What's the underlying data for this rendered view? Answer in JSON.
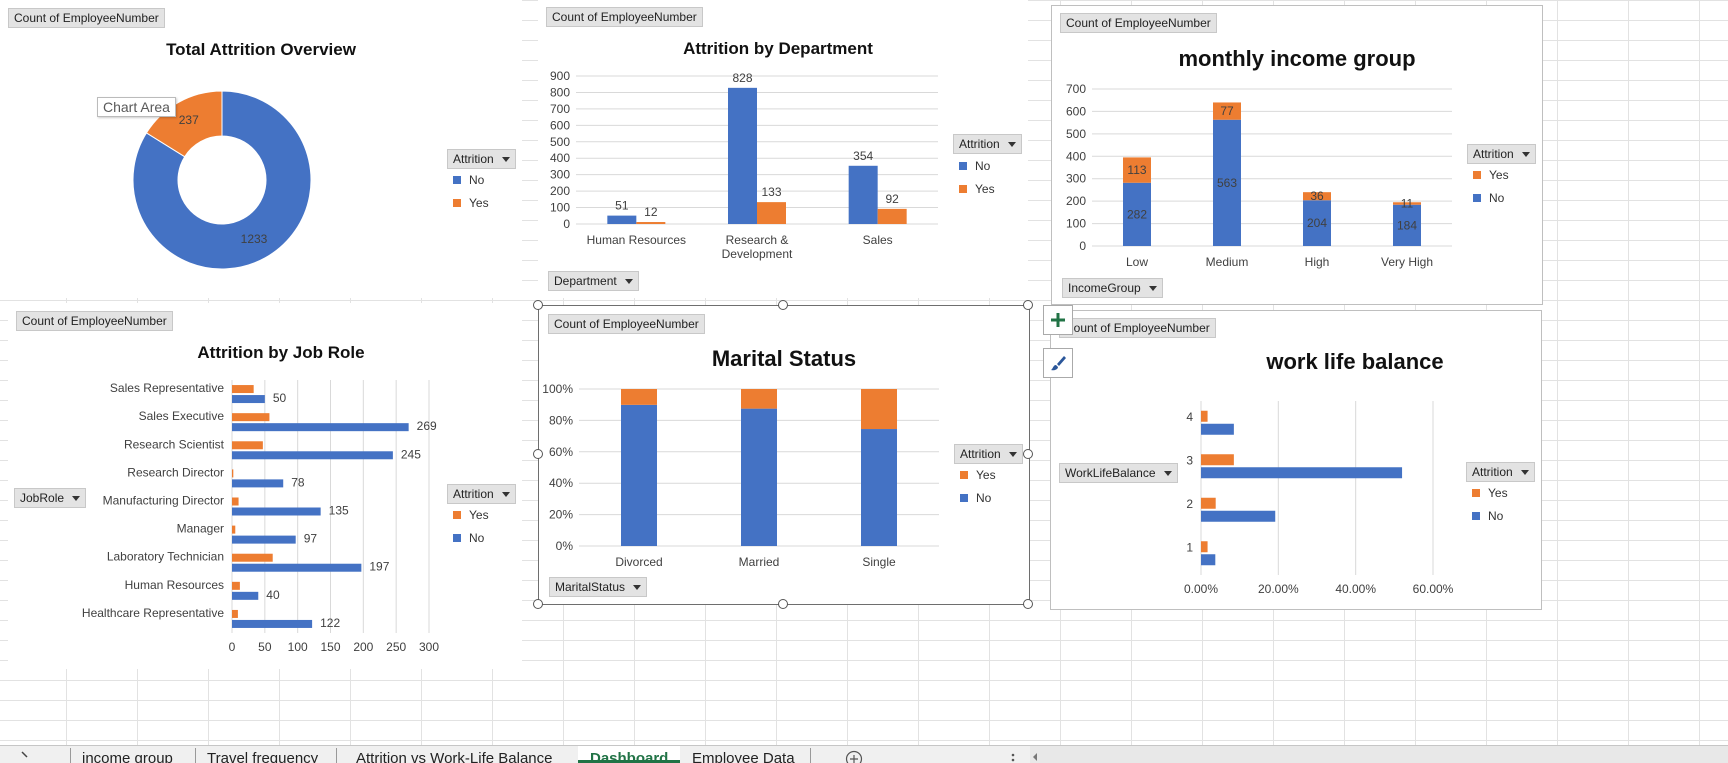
{
  "colors": {
    "blue": "#4472C4",
    "orange": "#ED7D31",
    "grid": "#d9d9d9",
    "excel_green": "#217346"
  },
  "tooltip": "Chart Area",
  "charts": {
    "overview": {
      "field_button": "Count of EmployeeNumber",
      "title": "Total Attrition Overview",
      "legend_button": "Attrition",
      "legend": [
        "No",
        "Yes"
      ]
    },
    "department": {
      "field_button": "Count of EmployeeNumber",
      "title": "Attrition by Department",
      "axis_button": "Department",
      "legend_button": "Attrition",
      "legend": [
        "No",
        "Yes"
      ]
    },
    "income": {
      "field_button": "Count of EmployeeNumber",
      "title": "monthly income group",
      "axis_button": "IncomeGroup",
      "legend_button": "Attrition",
      "legend": [
        "Yes",
        "No"
      ]
    },
    "jobrole": {
      "field_button": "Count of EmployeeNumber",
      "title": "Attrition by Job Role",
      "axis_button": "JobRole",
      "legend_button": "Attrition",
      "legend": [
        "Yes",
        "No"
      ]
    },
    "marital": {
      "field_button": "Count of EmployeeNumber",
      "title": "Marital Status",
      "axis_button": "MaritalStatus",
      "legend_button": "Attrition",
      "legend": [
        "Yes",
        "No"
      ]
    },
    "worklife": {
      "field_button": "Count of EmployeeNumber",
      "title": "work life balance",
      "axis_button": "WorkLifeBalance",
      "legend_button": "Attrition",
      "legend": [
        "Yes",
        "No"
      ]
    }
  },
  "tabs": [
    {
      "label": "income group",
      "active": false
    },
    {
      "label": "Travel frequency",
      "active": false
    },
    {
      "label": "Attrition vs Work-Life Balance",
      "active": false
    },
    {
      "label": "Dashboard",
      "active": true
    },
    {
      "label": "Employee Data",
      "active": false
    }
  ],
  "chart_data": [
    {
      "id": "overview",
      "type": "pie",
      "title": "Total Attrition Overview",
      "categories": [
        "No",
        "Yes"
      ],
      "values": [
        1233,
        237
      ],
      "data_labels": [
        "1233",
        "237"
      ]
    },
    {
      "id": "department",
      "type": "bar",
      "title": "Attrition by Department",
      "categories": [
        "Human Resources",
        "Research & Development",
        "Sales"
      ],
      "series": [
        {
          "name": "No",
          "values": [
            51,
            828,
            354
          ]
        },
        {
          "name": "Yes",
          "values": [
            12,
            133,
            92
          ]
        }
      ],
      "ylim": [
        0,
        900
      ],
      "yticks": [
        "0",
        "100",
        "200",
        "300",
        "400",
        "500",
        "600",
        "700",
        "800",
        "900"
      ],
      "grid": true,
      "legend": "right"
    },
    {
      "id": "income",
      "type": "bar",
      "title": "monthly income group",
      "stacked": true,
      "categories": [
        "Low",
        "Medium",
        "High",
        "Very High"
      ],
      "series": [
        {
          "name": "No",
          "values": [
            282,
            563,
            204,
            184
          ]
        },
        {
          "name": "Yes",
          "values": [
            113,
            77,
            36,
            11
          ]
        }
      ],
      "ylim": [
        0,
        700
      ],
      "yticks": [
        "0",
        "100",
        "200",
        "300",
        "400",
        "500",
        "600",
        "700"
      ],
      "grid": true,
      "legend": "right"
    },
    {
      "id": "jobrole",
      "type": "bar",
      "orientation": "horizontal",
      "title": "Attrition by Job Role",
      "categories": [
        "Sales Representative",
        "Sales Executive",
        "Research Scientist",
        "Research Director",
        "Manufacturing Director",
        "Manager",
        "Laboratory Technician",
        "Human Resources",
        "Healthcare Representative"
      ],
      "series": [
        {
          "name": "No",
          "values": [
            50,
            269,
            245,
            78,
            135,
            97,
            197,
            40,
            122
          ]
        },
        {
          "name": "Yes",
          "values": [
            33,
            57,
            47,
            2,
            10,
            5,
            62,
            12,
            9
          ]
        }
      ],
      "xlim": [
        0,
        300
      ],
      "xticks": [
        "0",
        "50",
        "100",
        "150",
        "200",
        "250",
        "300"
      ],
      "grid": true,
      "legend": "right"
    },
    {
      "id": "marital",
      "type": "bar",
      "title": "Marital Status",
      "stacked": true,
      "percent": true,
      "categories": [
        "Divorced",
        "Married",
        "Single"
      ],
      "series": [
        {
          "name": "No",
          "values": [
            0.899,
            0.875,
            0.745
          ]
        },
        {
          "name": "Yes",
          "values": [
            0.101,
            0.125,
            0.255
          ]
        }
      ],
      "ylim": [
        0,
        1
      ],
      "yticks": [
        "0%",
        "20%",
        "40%",
        "60%",
        "80%",
        "100%"
      ],
      "grid": true,
      "legend": "right"
    },
    {
      "id": "worklife",
      "type": "bar",
      "orientation": "horizontal",
      "title": "work life balance",
      "categories": [
        "1",
        "2",
        "3",
        "4"
      ],
      "series": [
        {
          "name": "No",
          "values": [
            0.037,
            0.192,
            0.52,
            0.085
          ]
        },
        {
          "name": "Yes",
          "values": [
            0.017,
            0.038,
            0.085,
            0.017
          ]
        }
      ],
      "xlim": [
        0,
        0.6
      ],
      "xticks": [
        "0.00%",
        "20.00%",
        "40.00%",
        "60.00%"
      ],
      "grid": true,
      "legend": "right"
    }
  ]
}
